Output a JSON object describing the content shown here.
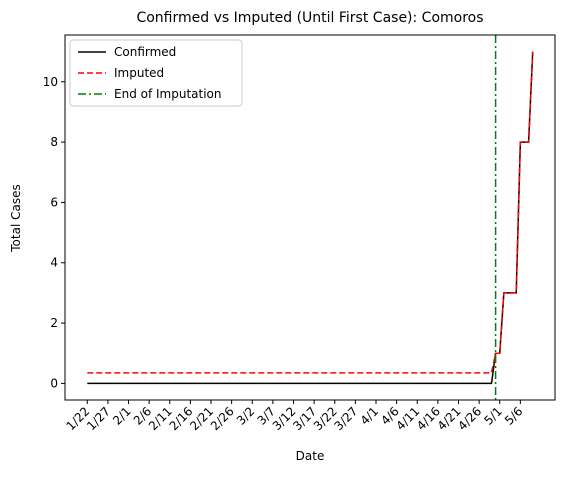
{
  "chart_data": {
    "type": "line",
    "title": "Confirmed vs Imputed (Until First Case): Comoros",
    "x_label": "Date",
    "y_label": "Total Cases",
    "x": [
      "1/22",
      "1/23",
      "1/24",
      "1/25",
      "1/26",
      "1/27",
      "1/28",
      "1/29",
      "1/30",
      "1/31",
      "2/1",
      "2/2",
      "2/3",
      "2/4",
      "2/5",
      "2/6",
      "2/7",
      "2/8",
      "2/9",
      "2/10",
      "2/11",
      "2/12",
      "2/13",
      "2/14",
      "2/15",
      "2/16",
      "2/17",
      "2/18",
      "2/19",
      "2/20",
      "2/21",
      "2/22",
      "2/23",
      "2/24",
      "2/25",
      "2/26",
      "2/27",
      "2/28",
      "2/29",
      "3/1",
      "3/2",
      "3/3",
      "3/4",
      "3/5",
      "3/6",
      "3/7",
      "3/8",
      "3/9",
      "3/10",
      "3/11",
      "3/12",
      "3/13",
      "3/14",
      "3/15",
      "3/16",
      "3/17",
      "3/18",
      "3/19",
      "3/20",
      "3/21",
      "3/22",
      "3/23",
      "3/24",
      "3/25",
      "3/26",
      "3/27",
      "3/28",
      "3/29",
      "3/30",
      "3/31",
      "4/1",
      "4/2",
      "4/3",
      "4/4",
      "4/5",
      "4/6",
      "4/7",
      "4/8",
      "4/9",
      "4/10",
      "4/11",
      "4/12",
      "4/13",
      "4/14",
      "4/15",
      "4/16",
      "4/17",
      "4/18",
      "4/19",
      "4/20",
      "4/21",
      "4/22",
      "4/23",
      "4/24",
      "4/25",
      "4/26",
      "4/27",
      "4/28",
      "4/29",
      "4/30",
      "5/1",
      "5/2",
      "5/3",
      "5/4",
      "5/5",
      "5/6",
      "5/7",
      "5/8",
      "5/9"
    ],
    "xticks": [
      "1/22",
      "1/27",
      "2/1",
      "2/6",
      "2/11",
      "2/16",
      "2/21",
      "2/26",
      "3/2",
      "3/7",
      "3/12",
      "3/17",
      "3/22",
      "3/27",
      "4/1",
      "4/6",
      "4/11",
      "4/16",
      "4/21",
      "4/26",
      "5/1",
      "5/6"
    ],
    "series": [
      {
        "name": "Confirmed",
        "color": "#000000",
        "dash": "solid",
        "values": [
          0,
          0,
          0,
          0,
          0,
          0,
          0,
          0,
          0,
          0,
          0,
          0,
          0,
          0,
          0,
          0,
          0,
          0,
          0,
          0,
          0,
          0,
          0,
          0,
          0,
          0,
          0,
          0,
          0,
          0,
          0,
          0,
          0,
          0,
          0,
          0,
          0,
          0,
          0,
          0,
          0,
          0,
          0,
          0,
          0,
          0,
          0,
          0,
          0,
          0,
          0,
          0,
          0,
          0,
          0,
          0,
          0,
          0,
          0,
          0,
          0,
          0,
          0,
          0,
          0,
          0,
          0,
          0,
          0,
          0,
          0,
          0,
          0,
          0,
          0,
          0,
          0,
          0,
          0,
          0,
          0,
          0,
          0,
          0,
          0,
          0,
          0,
          0,
          0,
          0,
          0,
          0,
          0,
          0,
          0,
          0,
          0,
          0,
          0,
          1,
          1,
          3,
          3,
          3,
          3,
          8,
          8,
          8,
          11
        ]
      },
      {
        "name": "Imputed",
        "color": "#ff0000",
        "dash": "dashed",
        "values": [
          0.35,
          0.35,
          0.35,
          0.35,
          0.35,
          0.35,
          0.35,
          0.35,
          0.35,
          0.35,
          0.35,
          0.35,
          0.35,
          0.35,
          0.35,
          0.35,
          0.35,
          0.35,
          0.35,
          0.35,
          0.35,
          0.35,
          0.35,
          0.35,
          0.35,
          0.35,
          0.35,
          0.35,
          0.35,
          0.35,
          0.35,
          0.35,
          0.35,
          0.35,
          0.35,
          0.35,
          0.35,
          0.35,
          0.35,
          0.35,
          0.35,
          0.35,
          0.35,
          0.35,
          0.35,
          0.35,
          0.35,
          0.35,
          0.35,
          0.35,
          0.35,
          0.35,
          0.35,
          0.35,
          0.35,
          0.35,
          0.35,
          0.35,
          0.35,
          0.35,
          0.35,
          0.35,
          0.35,
          0.35,
          0.35,
          0.35,
          0.35,
          0.35,
          0.35,
          0.35,
          0.35,
          0.35,
          0.35,
          0.35,
          0.35,
          0.35,
          0.35,
          0.35,
          0.35,
          0.35,
          0.35,
          0.35,
          0.35,
          0.35,
          0.35,
          0.35,
          0.35,
          0.35,
          0.35,
          0.35,
          0.35,
          0.35,
          0.35,
          0.35,
          0.35,
          0.35,
          0.35,
          0.35,
          0.35,
          1,
          1,
          3,
          3,
          3,
          3,
          8,
          8,
          8,
          11
        ]
      }
    ],
    "vline": {
      "name": "End of Imputation",
      "x": "4/30",
      "color": "#008000",
      "dash": "dashdot"
    },
    "ylim": [
      -0.55,
      11.55
    ],
    "yticks": [
      0,
      2,
      4,
      6,
      8,
      10
    ],
    "legend": "upper left"
  }
}
